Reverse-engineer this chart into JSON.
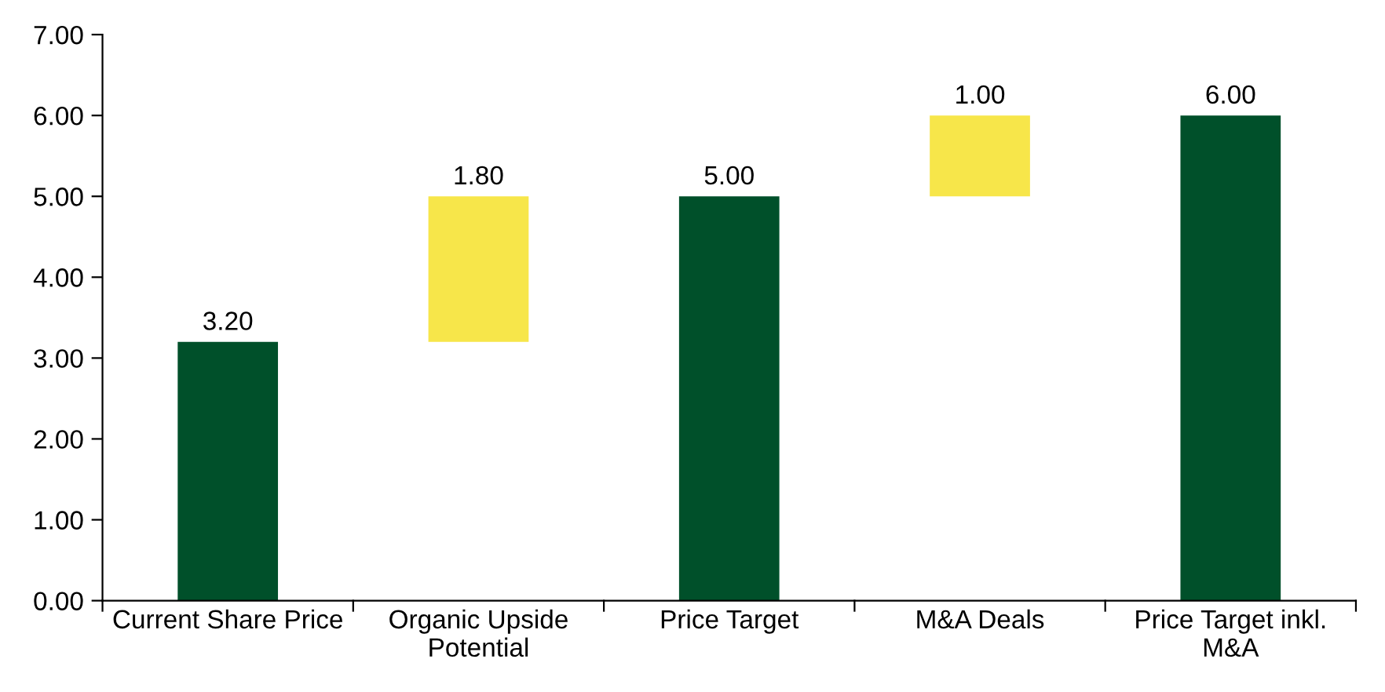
{
  "chart_data": {
    "type": "bar",
    "categories": [
      "Current Share Price",
      "Organic Upside\nPotential",
      "Price Target",
      "M&A Deals",
      "Price Target inkl.\nM&A"
    ],
    "values": [
      3.2,
      1.8,
      5.0,
      1.0,
      6.0
    ],
    "base": [
      0,
      3.2,
      0,
      5.0,
      0
    ],
    "colors": [
      "#00502a",
      "#f7e64a",
      "#00502a",
      "#f7e64a",
      "#00502a"
    ],
    "value_labels": [
      "3.20",
      "1.80",
      "5.00",
      "1.00",
      "6.00"
    ],
    "ylim": [
      0,
      7
    ],
    "yticks": [
      {
        "value": 0,
        "label": "0.00"
      },
      {
        "value": 1,
        "label": "1.00"
      },
      {
        "value": 2,
        "label": "2.00"
      },
      {
        "value": 3,
        "label": "3.00"
      },
      {
        "value": 4,
        "label": "4.00"
      },
      {
        "value": 5,
        "label": "5.00"
      },
      {
        "value": 6,
        "label": "6.00"
      },
      {
        "value": 7,
        "label": "7.00"
      }
    ],
    "grid": false
  }
}
